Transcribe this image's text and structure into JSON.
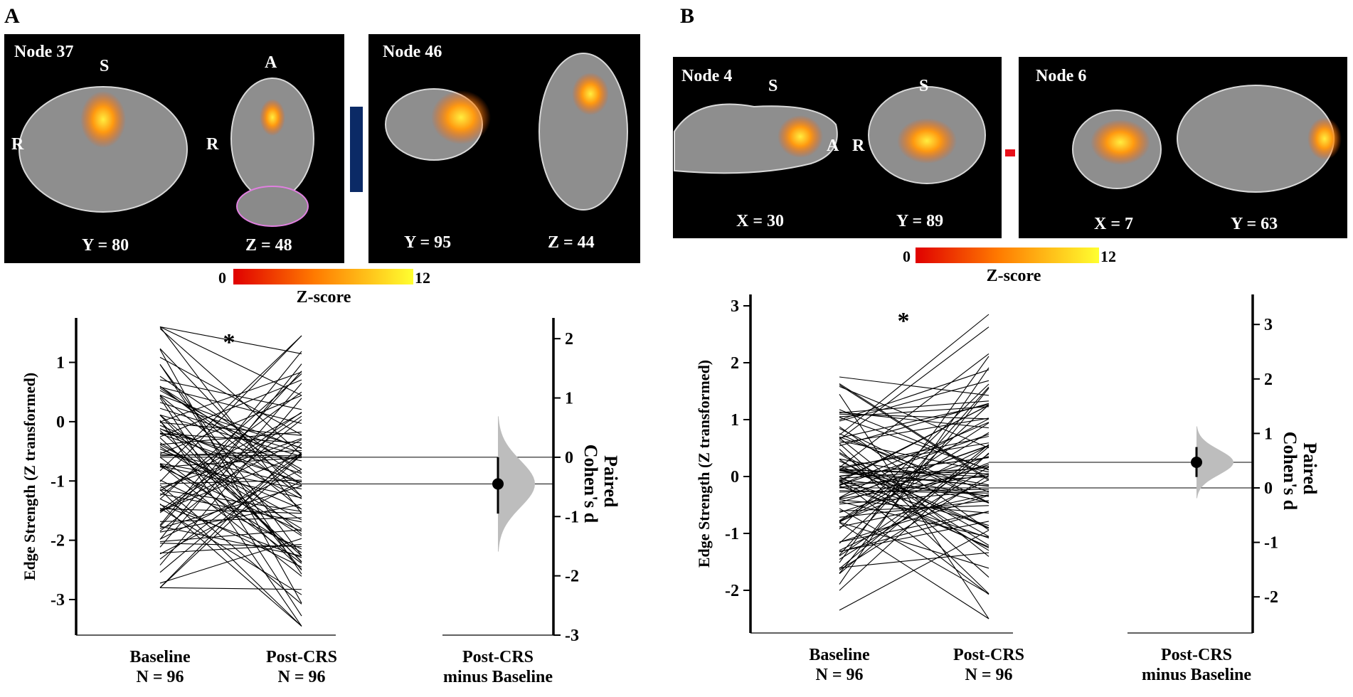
{
  "panels": [
    {
      "label": "A",
      "brain": [
        {
          "node": "Node 37",
          "views": [
            {
              "coord": "Y = 80",
              "letters": [
                "S",
                "R"
              ]
            },
            {
              "coord": "Z = 48",
              "letters": [
                "A",
                "R"
              ]
            }
          ]
        },
        {
          "node": "Node 46",
          "views": [
            {
              "coord": "Y = 95",
              "letters": []
            },
            {
              "coord": "Z = 44",
              "letters": []
            }
          ]
        }
      ],
      "connector_color": "#0b2a66",
      "colorbar": {
        "min": "0",
        "max": "12",
        "label": "Z-score"
      }
    },
    {
      "label": "B",
      "brain": [
        {
          "node": "Node 4",
          "views": [
            {
              "coord": "X = 30",
              "letters": [
                "S",
                "A"
              ]
            },
            {
              "coord": "Y = 89",
              "letters": [
                "S",
                "R"
              ]
            }
          ]
        },
        {
          "node": "Node 6",
          "views": [
            {
              "coord": "X = 7",
              "letters": []
            },
            {
              "coord": "Y = 63",
              "letters": []
            }
          ]
        }
      ],
      "connector_color": "#e8101a",
      "colorbar": {
        "min": "0",
        "max": "12",
        "label": "Z-score"
      }
    }
  ],
  "chart_data": [
    {
      "panel": "A",
      "type": "estimation-slopegraph",
      "ylabel": "Edge Strength (Z transformed)",
      "ylim": [
        -3.6,
        1.75
      ],
      "yticks": [
        "1",
        "0",
        "-1",
        "-2",
        "-3"
      ],
      "ytick_values": [
        1,
        0,
        -1,
        -2,
        -3
      ],
      "categories": [
        "Baseline\nN = 96",
        "Post-CRS\nN = 96",
        "Post-CRS\nminus Baseline"
      ],
      "n_pairs": 96,
      "baseline_mean": -0.6,
      "postcrs_mean": -1.05,
      "baseline_range": [
        -2.8,
        1.6
      ],
      "postcrs_range": [
        -3.45,
        1.45
      ],
      "significance": "*",
      "effect_size": {
        "label": "Paired\nCohen's d",
        "d": -0.45,
        "ci": [
          -0.95,
          0.0
        ],
        "ticks": [
          "2",
          "1",
          "0",
          "-1",
          "-2",
          "-3"
        ],
        "tick_values": [
          2,
          1,
          0,
          -1,
          -2,
          -3
        ]
      }
    },
    {
      "panel": "B",
      "type": "estimation-slopegraph",
      "ylabel": "Edge Strength (Z transformed)",
      "ylim": [
        -2.75,
        3.2
      ],
      "yticks": [
        "3",
        "2",
        "1",
        "0",
        "-1",
        "-2"
      ],
      "ytick_values": [
        3,
        2,
        1,
        0,
        -1,
        -2
      ],
      "categories": [
        "Baseline\nN = 96",
        "Post-CRS\nN = 96",
        "Post-CRS\nminus Baseline"
      ],
      "n_pairs": 96,
      "baseline_mean": -0.2,
      "postcrs_mean": 0.25,
      "baseline_range": [
        -2.35,
        1.75
      ],
      "postcrs_range": [
        -2.5,
        2.85
      ],
      "significance": "*",
      "effect_size": {
        "label": "Paired\nCohen's d",
        "d": 0.47,
        "ci": [
          0.2,
          0.75
        ],
        "ticks": [
          "3",
          "2",
          "1",
          "0",
          "-1",
          "-2"
        ],
        "tick_values": [
          3,
          2,
          1,
          0,
          -1,
          -2
        ]
      }
    }
  ]
}
